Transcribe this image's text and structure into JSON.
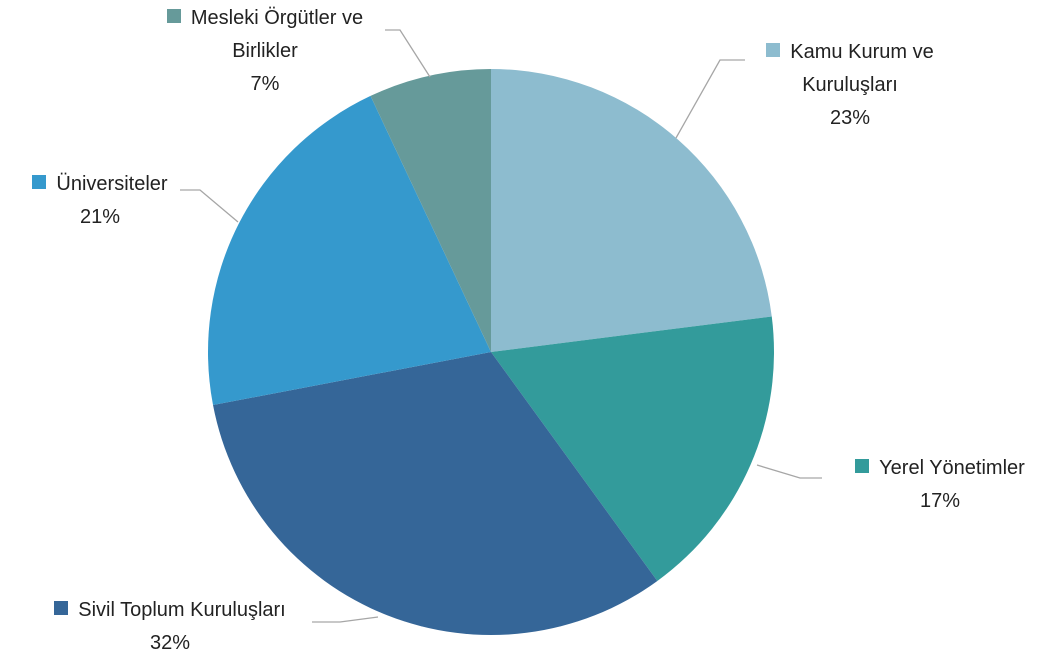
{
  "chart_data": {
    "type": "pie",
    "categories": [
      "Kamu Kurum ve Kuruluşları",
      "Yerel Yönetimler",
      "Sivil Toplum Kuruluşları",
      "Üniversiteler",
      "Mesleki Örgütler ve Birlikler"
    ],
    "values": [
      23,
      17,
      32,
      21,
      7
    ],
    "value_labels": [
      "23%",
      "17%",
      "32%",
      "21%",
      "7%"
    ],
    "colors": [
      "#8dbccf",
      "#339b9b",
      "#356698",
      "#3599cd",
      "#669a9a"
    ]
  }
}
